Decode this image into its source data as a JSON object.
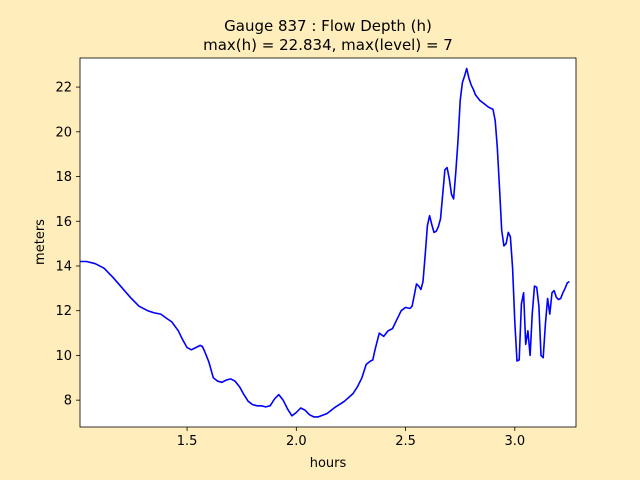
{
  "chart_data": {
    "type": "line",
    "title_line1": "Gauge 837 : Flow Depth (h)",
    "title_line2": "max(h) =  22.834,    max(level) = 7",
    "xlabel": "hours",
    "ylabel": "meters",
    "xlim": [
      1.0,
      1.01,
      3.28
    ],
    "ylim": [
      6.8,
      23.3
    ],
    "xticks": [
      1.5,
      2.0,
      2.5,
      3.0
    ],
    "xtick_labels": [
      "1.5",
      "2.0",
      "2.5",
      "3.0"
    ],
    "yticks": [
      8,
      10,
      12,
      14,
      16,
      18,
      20,
      22
    ],
    "ytick_labels": [
      "8",
      "10",
      "12",
      "14",
      "16",
      "18",
      "20",
      "22"
    ],
    "grid": false,
    "line_color": "#0000ff",
    "series": [
      {
        "x": [
          1.0,
          1.04,
          1.08,
          1.12,
          1.16,
          1.2,
          1.24,
          1.28,
          1.32,
          1.35,
          1.38,
          1.4,
          1.43,
          1.46,
          1.48,
          1.5,
          1.52,
          1.54,
          1.56,
          1.57,
          1.58,
          1.6,
          1.62,
          1.64,
          1.66,
          1.68,
          1.7,
          1.72,
          1.74,
          1.76,
          1.78,
          1.8,
          1.82,
          1.84,
          1.86,
          1.88,
          1.9,
          1.92,
          1.94,
          1.96,
          1.98,
          2.0,
          2.02,
          2.04,
          2.06,
          2.08,
          2.1,
          2.14,
          2.18,
          2.22,
          2.26,
          2.28,
          2.3,
          2.32,
          2.34,
          2.35,
          2.36,
          2.38,
          2.4,
          2.42,
          2.44,
          2.46,
          2.48,
          2.5,
          2.52,
          2.53,
          2.54,
          2.55,
          2.56,
          2.57,
          2.58,
          2.59,
          2.6,
          2.61,
          2.62,
          2.63,
          2.64,
          2.65,
          2.66,
          2.67,
          2.68,
          2.69,
          2.7,
          2.71,
          2.72,
          2.73,
          2.74,
          2.75,
          2.76,
          2.77,
          2.78,
          2.79,
          2.8,
          2.81,
          2.82,
          2.84,
          2.86,
          2.88,
          2.9,
          2.91,
          2.92,
          2.93,
          2.94,
          2.95,
          2.96,
          2.97,
          2.98,
          2.99,
          3.0,
          3.01,
          3.02,
          3.03,
          3.04,
          3.05,
          3.06,
          3.07,
          3.08,
          3.09,
          3.1,
          3.11,
          3.12,
          3.13,
          3.14,
          3.15,
          3.16,
          3.17,
          3.18,
          3.19,
          3.2,
          3.21,
          3.22,
          3.23,
          3.24,
          3.25
        ],
        "y": [
          14.2,
          14.2,
          14.1,
          13.9,
          13.5,
          13.05,
          12.6,
          12.2,
          12.0,
          11.9,
          11.85,
          11.7,
          11.5,
          11.1,
          10.7,
          10.35,
          10.25,
          10.35,
          10.45,
          10.4,
          10.2,
          9.7,
          9.0,
          8.85,
          8.8,
          8.9,
          8.95,
          8.85,
          8.6,
          8.25,
          7.95,
          7.8,
          7.75,
          7.75,
          7.7,
          7.75,
          8.05,
          8.25,
          8.0,
          7.6,
          7.3,
          7.45,
          7.65,
          7.55,
          7.35,
          7.25,
          7.25,
          7.4,
          7.7,
          7.95,
          8.3,
          8.6,
          9.0,
          9.6,
          9.75,
          9.8,
          10.25,
          11.0,
          10.85,
          11.1,
          11.2,
          11.6,
          12.0,
          12.15,
          12.1,
          12.2,
          12.7,
          13.2,
          13.1,
          12.95,
          13.3,
          14.5,
          15.8,
          16.25,
          15.85,
          15.5,
          15.55,
          15.75,
          16.1,
          17.2,
          18.3,
          18.4,
          17.9,
          17.2,
          17.0,
          18.2,
          19.6,
          21.4,
          22.2,
          22.5,
          22.83,
          22.4,
          22.1,
          21.9,
          21.65,
          21.4,
          21.25,
          21.1,
          21.0,
          20.5,
          19.3,
          17.5,
          15.6,
          14.9,
          15.0,
          15.5,
          15.3,
          13.9,
          11.5,
          9.75,
          9.8,
          12.3,
          12.8,
          10.5,
          11.1,
          10.0,
          11.9,
          13.1,
          13.05,
          12.2,
          10.0,
          9.9,
          11.4,
          12.55,
          11.85,
          12.8,
          12.9,
          12.6,
          12.5,
          12.55,
          12.8,
          13.0,
          13.25,
          13.3
        ]
      }
    ]
  }
}
